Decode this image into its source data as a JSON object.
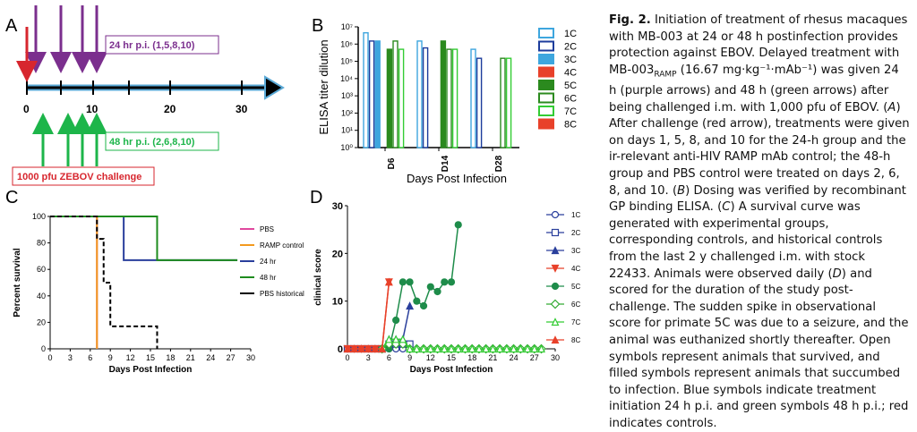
{
  "panels": {
    "A": {
      "letter": "A",
      "box_24": "24 hr p.i. (1,5,8,10)",
      "box_48": "48 hr p.i. (2,6,8,10)",
      "box_challenge": "1000 pfu ZEBOV challenge",
      "ticks": [
        "0",
        "10",
        "20",
        "30"
      ],
      "colors": {
        "purple": "#7b2f8e",
        "green": "#1db54a",
        "red": "#d7262e",
        "arrow": "#5aa9d6"
      }
    },
    "B": {
      "letter": "B",
      "ylabel": "ELISA titer dilution",
      "xlabel": "Days Post Infection",
      "yticks": [
        "10⁰",
        "10¹",
        "10²",
        "10³",
        "10⁴",
        "10⁵",
        "10⁶",
        "10⁷"
      ],
      "legend": [
        "1C",
        "2C",
        "3C",
        "4C",
        "5C",
        "6C",
        "7C",
        "8C"
      ]
    },
    "C": {
      "letter": "C",
      "ylabel": "Percent survival",
      "xlabel": "Days Post Infection",
      "legend": [
        "PBS",
        "RAMP control",
        "24 hr",
        "48 hr",
        "PBS historical"
      ]
    },
    "D": {
      "letter": "D",
      "ylabel": "clinical score",
      "xlabel": "Days Post Infection",
      "legend": [
        "1C",
        "2C",
        "3C",
        "4C",
        "5C",
        "6C",
        "7C",
        "8C"
      ]
    }
  },
  "caption": {
    "fig": "Fig. 2.",
    "title": "Initiation of treatment of rhesus macaques with MB-003 at 24 or 48 h postinfection provides protection against EBOV.",
    "s1a": "Delayed treatment with MB-003",
    "s1sub": "RAMP",
    "s1b": " (16.67 mg·kg⁻¹·mAb⁻¹) was given 24 h (purple arrows) and 48 h (green arrows) after being challenged i.m. with 1,000 pfu of EBOV. (",
    "A": "A",
    "s2": ") After challenge (red arrow), treatments were given on days 1, 5, 8, and 10 for the 24-h group and the ir-relevant anti-HIV RAMP mAb control; the 48-h group and PBS control were treated on days 2, 6, 8, and 10. (",
    "B": "B",
    "s3": ") Dosing was verified by recombinant GP binding ELISA. (",
    "C": "C",
    "s4": ") A survival curve was generated with experimental groups, corresponding controls, and historical controls from the last 2 y challenged i.m. with stock 22433. Animals were observed daily (",
    "D": "D",
    "s5": ") and scored for the duration of the study post-challenge. The sudden spike in observational score for primate 5C was due to a seizure, and the animal was euthanized shortly thereafter. Open symbols represent animals that survived, and filled symbols represent animals that succumbed to infection. Blue symbols indicate treatment initiation 24 h p.i. and green symbols 48 h p.i.; red indicates controls."
  },
  "chart_data": [
    {
      "panel": "B",
      "type": "bar",
      "categories": [
        "D6",
        "D14",
        "D28"
      ],
      "ylabel": "ELISA titer dilution",
      "xlabel": "Days Post Infection",
      "log_scale": true,
      "ylim": [
        1,
        10000000
      ],
      "series": [
        {
          "name": "1C",
          "color": "#3ea6de",
          "filled": false,
          "values": [
            4500000,
            1500000,
            500000
          ]
        },
        {
          "name": "2C",
          "color": "#1c3c9c",
          "filled": false,
          "values": [
            1500000,
            600000,
            150000
          ]
        },
        {
          "name": "3C",
          "color": "#3ea6de",
          "filled": true,
          "values": [
            1500000,
            null,
            null
          ]
        },
        {
          "name": "4C",
          "color": "#e8412a",
          "filled": true,
          "values": [
            null,
            null,
            null
          ]
        },
        {
          "name": "5C",
          "color": "#2b8a1e",
          "filled": true,
          "values": [
            500000,
            1500000,
            null
          ]
        },
        {
          "name": "6C",
          "color": "#2b8a1e",
          "filled": false,
          "values": [
            1500000,
            500000,
            150000
          ]
        },
        {
          "name": "7C",
          "color": "#33cc33",
          "filled": false,
          "values": [
            500000,
            500000,
            150000
          ]
        },
        {
          "name": "8C",
          "color": "#e8412a",
          "filled": true,
          "values": [
            null,
            null,
            null
          ]
        }
      ]
    },
    {
      "panel": "C",
      "type": "line",
      "xlabel": "Days Post Infection",
      "ylabel": "Percent survival",
      "xlim": [
        0,
        30
      ],
      "ylim": [
        0,
        100
      ],
      "xticks": [
        0,
        3,
        6,
        9,
        12,
        15,
        18,
        21,
        24,
        27,
        30
      ],
      "yticks": [
        0,
        20,
        40,
        60,
        80,
        100
      ],
      "series": [
        {
          "name": "PBS",
          "color": "#e0479e",
          "dash": false,
          "points": [
            [
              0,
              100
            ],
            [
              7,
              100
            ],
            [
              7,
              0
            ]
          ]
        },
        {
          "name": "RAMP control",
          "color": "#f39a1e",
          "dash": false,
          "points": [
            [
              0,
              100
            ],
            [
              7,
              100
            ],
            [
              7,
              0
            ]
          ]
        },
        {
          "name": "24 hr",
          "color": "#2a3f9c",
          "dash": false,
          "points": [
            [
              0,
              100
            ],
            [
              11,
              100
            ],
            [
              11,
              67
            ],
            [
              28,
              67
            ]
          ]
        },
        {
          "name": "48 hr",
          "color": "#1e8c1e",
          "dash": false,
          "points": [
            [
              0,
              100
            ],
            [
              16,
              100
            ],
            [
              16,
              67
            ],
            [
              28,
              67
            ]
          ]
        },
        {
          "name": "PBS historical",
          "color": "#000000",
          "dash": true,
          "points": [
            [
              0,
              100
            ],
            [
              7,
              100
            ],
            [
              7,
              83
            ],
            [
              8,
              83
            ],
            [
              8,
              50
            ],
            [
              9,
              50
            ],
            [
              9,
              17
            ],
            [
              16,
              17
            ],
            [
              16,
              0
            ]
          ]
        }
      ]
    },
    {
      "panel": "D",
      "type": "line",
      "xlabel": "Days Post Infection",
      "ylabel": "clinical score",
      "xlim": [
        0,
        30
      ],
      "ylim": [
        0,
        30
      ],
      "xticks": [
        0,
        3,
        6,
        9,
        12,
        15,
        18,
        21,
        24,
        27,
        30
      ],
      "yticks": [
        0,
        10,
        20,
        30
      ],
      "series": [
        {
          "name": "1C",
          "color": "#2a3f9c",
          "marker": "circle-open",
          "points": [
            [
              0,
              0
            ],
            [
              1,
              0
            ],
            [
              2,
              0
            ],
            [
              3,
              0
            ],
            [
              4,
              0
            ],
            [
              5,
              0
            ],
            [
              6,
              0
            ],
            [
              7,
              0
            ],
            [
              8,
              0
            ],
            [
              9,
              0
            ]
          ]
        },
        {
          "name": "2C",
          "color": "#2a3f9c",
          "marker": "square-open",
          "points": [
            [
              0,
              0
            ],
            [
              1,
              0
            ],
            [
              2,
              0
            ],
            [
              3,
              0
            ],
            [
              4,
              0
            ],
            [
              5,
              0
            ],
            [
              6,
              1
            ],
            [
              7,
              1
            ],
            [
              8,
              1
            ],
            [
              9,
              1
            ]
          ]
        },
        {
          "name": "3C",
          "color": "#2a3f9c",
          "marker": "triangle-filled",
          "points": [
            [
              5,
              0
            ],
            [
              6,
              2
            ],
            [
              7,
              2
            ],
            [
              8,
              2
            ],
            [
              9,
              9
            ]
          ]
        },
        {
          "name": "4C",
          "color": "#e8412a",
          "marker": "triangle-down-filled",
          "points": [
            [
              0,
              0
            ],
            [
              1,
              0
            ],
            [
              2,
              0
            ],
            [
              3,
              0
            ],
            [
              4,
              0
            ],
            [
              5,
              0
            ],
            [
              6,
              14
            ]
          ]
        },
        {
          "name": "5C",
          "color": "#1e8c4a",
          "marker": "circle-filled",
          "points": [
            [
              5,
              0
            ],
            [
              6,
              0
            ],
            [
              7,
              6
            ],
            [
              8,
              14
            ],
            [
              9,
              14
            ],
            [
              10,
              10
            ],
            [
              11,
              9
            ],
            [
              12,
              13
            ],
            [
              13,
              12
            ],
            [
              14,
              14
            ],
            [
              15,
              14
            ],
            [
              16,
              26
            ]
          ]
        },
        {
          "name": "6C",
          "color": "#33aa33",
          "marker": "diamond-open",
          "points": [
            [
              5,
              0
            ],
            [
              6,
              1
            ],
            [
              7,
              1
            ],
            [
              8,
              1
            ],
            [
              9,
              0
            ],
            [
              10,
              0
            ],
            [
              11,
              0
            ],
            [
              12,
              0
            ],
            [
              13,
              0
            ],
            [
              14,
              0
            ],
            [
              15,
              0
            ],
            [
              16,
              0
            ],
            [
              17,
              0
            ],
            [
              18,
              0
            ],
            [
              19,
              0
            ],
            [
              20,
              0
            ],
            [
              21,
              0
            ],
            [
              22,
              0
            ],
            [
              23,
              0
            ],
            [
              24,
              0
            ],
            [
              25,
              0
            ],
            [
              26,
              0
            ],
            [
              27,
              0
            ],
            [
              28,
              0
            ]
          ]
        },
        {
          "name": "7C",
          "color": "#33cc33",
          "marker": "triangle-open",
          "points": [
            [
              5,
              0
            ],
            [
              6,
              2
            ],
            [
              7,
              2
            ],
            [
              8,
              2
            ],
            [
              9,
              0
            ],
            [
              10,
              0
            ],
            [
              11,
              0
            ],
            [
              12,
              0
            ],
            [
              13,
              0
            ],
            [
              14,
              0
            ],
            [
              15,
              0
            ],
            [
              16,
              0
            ],
            [
              17,
              0
            ],
            [
              18,
              0
            ],
            [
              19,
              0
            ],
            [
              20,
              0
            ],
            [
              21,
              0
            ],
            [
              22,
              0
            ],
            [
              23,
              0
            ],
            [
              24,
              0
            ],
            [
              25,
              0
            ],
            [
              26,
              0
            ],
            [
              27,
              0
            ],
            [
              28,
              0
            ]
          ]
        },
        {
          "name": "8C",
          "color": "#e8412a",
          "marker": "triangle-filled",
          "points": [
            [
              0,
              0
            ],
            [
              1,
              0
            ],
            [
              2,
              0
            ],
            [
              3,
              0
            ],
            [
              4,
              0
            ],
            [
              5,
              0
            ],
            [
              6,
              14
            ]
          ]
        }
      ]
    }
  ]
}
